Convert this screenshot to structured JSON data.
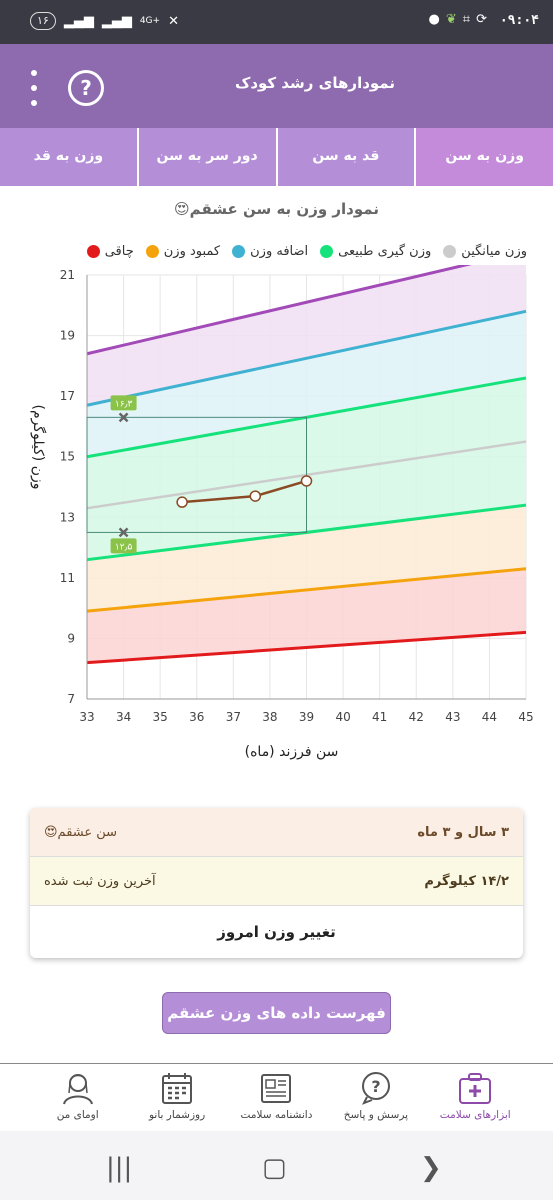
{
  "status_bar": {
    "time": "۰۹:۰۴",
    "battery": "۱۶",
    "network": "4G+"
  },
  "app_bar": {
    "title": "نمودارهای رشد کودک",
    "help_label": "?",
    "icons": [
      "menu-icon",
      "help-icon"
    ]
  },
  "tabs": [
    {
      "label": "وزن به سن",
      "active": true
    },
    {
      "label": "قد به سن",
      "active": false
    },
    {
      "label": "دور سر به سن",
      "active": false
    },
    {
      "label": "وزن به قد",
      "active": false
    }
  ],
  "chart_title": "نمودار وزن به سن عشقم😍",
  "legend": [
    {
      "label": "چاقی",
      "color": "#e31a1c"
    },
    {
      "label": "کمبود وزن",
      "color": "#f5a30d"
    },
    {
      "label": "اضافه وزن",
      "color": "#3fb1d1"
    },
    {
      "label": "وزن گیری طبیعی",
      "color": "#16e27c"
    },
    {
      "label": "وزن میانگین",
      "color": "#cccccc"
    }
  ],
  "chart_data": {
    "type": "line",
    "xlabel": "سن فرزند (ماه)",
    "ylabel": "وزن (کیلوگرم)",
    "xlim": [
      33,
      45
    ],
    "ylim": [
      7,
      21
    ],
    "x_ticks": [
      33,
      34,
      35,
      36,
      37,
      38,
      39,
      40,
      41,
      42,
      43,
      44,
      45
    ],
    "y_ticks": [
      7,
      9,
      11,
      13,
      15,
      17,
      19,
      21
    ],
    "grid": true,
    "reference_lines": [
      {
        "color": "#e31a1c",
        "start": [
          33,
          8.2
        ],
        "end": [
          45,
          9.2
        ]
      },
      {
        "color": "#f5a30d",
        "start": [
          33,
          9.9
        ],
        "end": [
          45,
          11.3
        ]
      },
      {
        "color": "#16e27c",
        "start": [
          33,
          11.6
        ],
        "end": [
          45,
          13.4
        ]
      },
      {
        "color": "#cccccc",
        "start": [
          33,
          13.3
        ],
        "end": [
          45,
          15.5
        ]
      },
      {
        "color": "#16e27c",
        "start": [
          33,
          15.0
        ],
        "end": [
          45,
          17.6
        ]
      },
      {
        "color": "#3fb1d1",
        "start": [
          33,
          16.7
        ],
        "end": [
          45,
          19.8
        ]
      },
      {
        "color": "#a24ab8",
        "start": [
          33,
          18.4
        ],
        "end": [
          45,
          21.8
        ]
      }
    ],
    "band_fills": [
      "#fbd3d3",
      "#fdebd5",
      "#d4f8e5",
      "#d4f8e5",
      "#def2f8",
      "#f1dff3"
    ],
    "series": [
      {
        "color": "#8b4a24",
        "x": [
          35.6,
          37.6,
          39
        ],
        "y": [
          13.5,
          13.7,
          14.2
        ]
      }
    ],
    "markers": [
      {
        "x": 34,
        "y": 16.3,
        "label": "۱۶٫۳"
      },
      {
        "x": 34,
        "y": 12.5,
        "label": "۱۲٫۵"
      }
    ],
    "range_box": {
      "x0": 33,
      "x1": 39,
      "y0": 12.5,
      "y1": 16.3
    }
  },
  "info_card": {
    "age_label": "سن عشقم😍",
    "age_value": "۳ سال و ۳ ماه",
    "weight_label": "آخرین وزن ثبت شده",
    "weight_value": "۱۴/۲ کیلوگرم",
    "change_button": "تغییر وزن امروز"
  },
  "list_button": "فهرست داده های وزن عشقم😍",
  "bottom_nav": [
    {
      "label": "ابزارهای سلامت",
      "icon": "medical-kit-icon",
      "active": true
    },
    {
      "label": "پرسش و پاسخ",
      "icon": "question-bubble-icon",
      "active": false
    },
    {
      "label": "دانشنامه سلامت",
      "icon": "newspaper-icon",
      "active": false
    },
    {
      "label": "روزشمار بانو",
      "icon": "calendar-icon",
      "active": false
    },
    {
      "label": "اومای من",
      "icon": "user-profile-icon",
      "active": false
    }
  ]
}
